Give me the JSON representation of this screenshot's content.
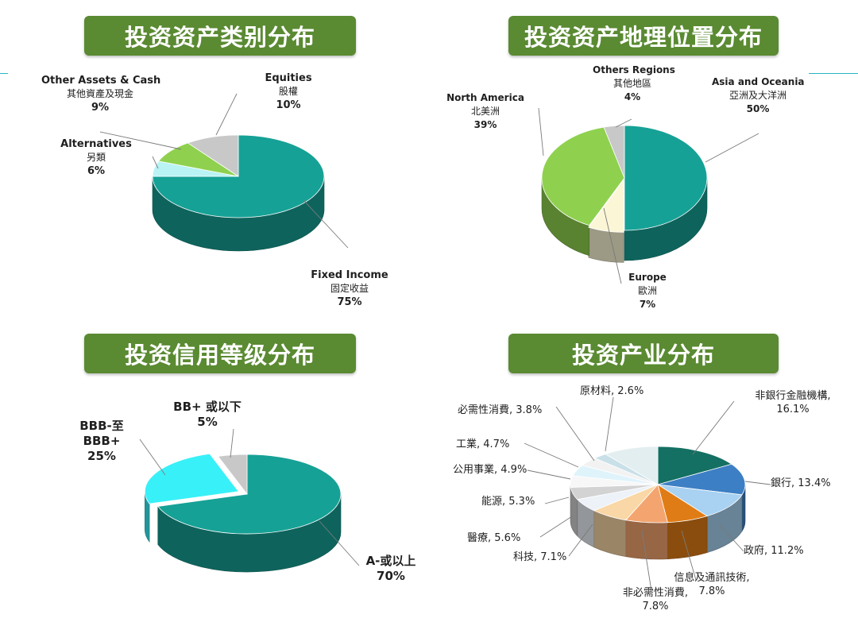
{
  "charts": [
    {
      "title": "投资资产类别分布"
    },
    {
      "title": "投资资产地理位置分布"
    },
    {
      "title": "投资信用等级分布"
    },
    {
      "title": "投资产业分布"
    }
  ],
  "chart_data": [
    {
      "type": "pie",
      "title": "投资资产类别分布",
      "slices": [
        {
          "en": "Fixed Income",
          "zh": "固定收益",
          "pct": "75%",
          "value": 75,
          "color": "#16a196"
        },
        {
          "en": "Alternatives",
          "zh": "另類",
          "pct": "6%",
          "value": 6,
          "color": "#b9f3f4"
        },
        {
          "en": "Other Assets & Cash",
          "zh": "其他資產及現金",
          "pct": "9%",
          "value": 9,
          "color": "#8fd14f"
        },
        {
          "en": "Equities",
          "zh": "股權",
          "pct": "10%",
          "value": 10,
          "color": "#c8c8c8"
        }
      ]
    },
    {
      "type": "pie",
      "title": "投资资产地理位置分布",
      "slices": [
        {
          "en": "Asia and Oceania",
          "zh": "亞洲及大洋洲",
          "pct": "50%",
          "value": 50,
          "color": "#16a196"
        },
        {
          "en": "Europe",
          "zh": "歐洲",
          "pct": "7%",
          "value": 7,
          "color": "#fbf6d6"
        },
        {
          "en": "North America",
          "zh": "北美洲",
          "pct": "39%",
          "value": 39,
          "color": "#8fd14f"
        },
        {
          "en": "Others Regions",
          "zh": "其他地區",
          "pct": "4%",
          "value": 4,
          "color": "#c8c8c8"
        }
      ]
    },
    {
      "type": "pie",
      "title": "投资信用等级分布",
      "slices": [
        {
          "l1": "A-或以上",
          "pct": "70%",
          "value": 70,
          "color": "#16a196"
        },
        {
          "l1": "BBB-至",
          "l2": "BBB+",
          "pct": "25%",
          "value": 25,
          "color": "#38f0f8"
        },
        {
          "l1": "BB+ 或以下",
          "pct": "5%",
          "value": 5,
          "color": "#c8c8c8"
        }
      ]
    },
    {
      "type": "pie",
      "title": "投资产业分布",
      "slices": [
        {
          "name": "非銀行金融機構,",
          "pct": "16.1%",
          "value": 16.1,
          "color": "#137062"
        },
        {
          "name": "銀行, 13.4%",
          "pct": "",
          "value": 13.4,
          "color": "#3d7fc4"
        },
        {
          "name": "政府, 11.2%",
          "pct": "",
          "value": 11.2,
          "color": "#a8d1f2"
        },
        {
          "name": "信息及通訊技術,",
          "pct": "7.8%",
          "value": 7.8,
          "color": "#e07c15"
        },
        {
          "name": "非必需性消費,",
          "pct": "7.8%",
          "value": 7.8,
          "color": "#f4a56f"
        },
        {
          "name": "科技, 7.1%",
          "pct": "",
          "value": 7.1,
          "color": "#f9d7a6"
        },
        {
          "name": "醫療, 5.6%",
          "pct": "",
          "value": 5.6,
          "color": "#edf2f8"
        },
        {
          "name": "能源, 5.3%",
          "pct": "",
          "value": 5.3,
          "color": "#d3d3d3"
        },
        {
          "name": "公用事業, 4.9%",
          "pct": "",
          "value": 4.9,
          "color": "#f7f7f7"
        },
        {
          "name": "工業, 4.7%",
          "pct": "",
          "value": 4.7,
          "color": "#dff3fb"
        },
        {
          "name": "必需性消費, 3.8%",
          "pct": "",
          "value": 3.8,
          "color": "#f2f2f2"
        },
        {
          "name": "原材料, 2.6%",
          "pct": "",
          "value": 2.6,
          "color": "#c9e0e8"
        },
        {
          "name": "",
          "pct": "",
          "value": 10.3,
          "color": "#e3eef0"
        }
      ]
    }
  ]
}
